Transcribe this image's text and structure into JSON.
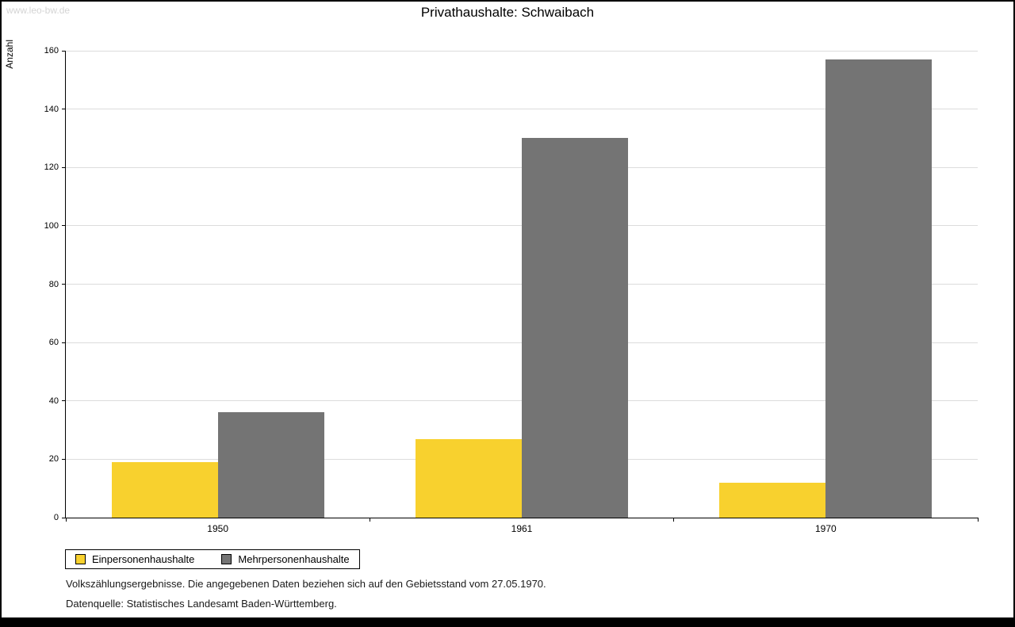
{
  "watermark": "www.leo-bw.de",
  "chart_data": {
    "type": "bar",
    "title": "Privathaushalte: Schwaibach",
    "ylabel": "Anzahl",
    "categories": [
      "1950",
      "1961",
      "1970"
    ],
    "series": [
      {
        "name": "Einpersonenhaushalte",
        "color": "#f8d12e",
        "values": [
          19,
          27,
          12
        ]
      },
      {
        "name": "Mehrpersonenhaushalte",
        "color": "#747474",
        "values": [
          36,
          130,
          157
        ]
      }
    ],
    "ylim": [
      0,
      160
    ],
    "ytick_step": 20,
    "grid": true,
    "legend_position": "bottom-left"
  },
  "footnotes": [
    "Volkszählungsergebnisse. Die angegebenen Daten beziehen sich auf den Gebietsstand vom 27.05.1970.",
    "Datenquelle: Statistisches Landesamt Baden-Württemberg."
  ]
}
